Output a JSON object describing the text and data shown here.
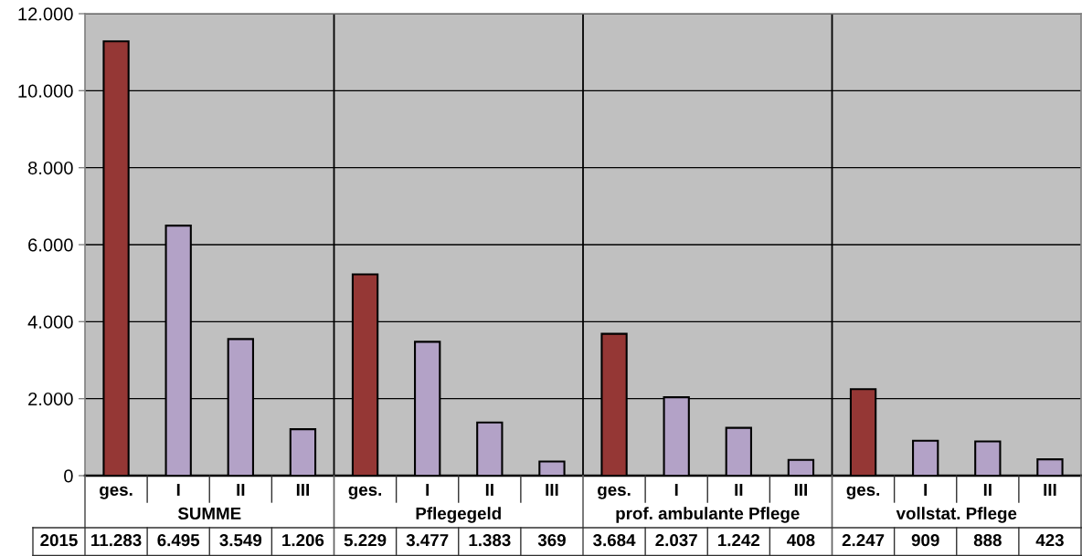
{
  "chart_data": {
    "type": "bar",
    "categories": [
      "ges.",
      "I",
      "II",
      "III",
      "ges.",
      "I",
      "II",
      "III",
      "ges.",
      "I",
      "II",
      "III",
      "ges.",
      "I",
      "II",
      "III"
    ],
    "series": [
      {
        "name": "2015",
        "values": [
          11283,
          6495,
          3549,
          1206,
          5229,
          3477,
          1383,
          369,
          3684,
          2037,
          1242,
          408,
          2247,
          909,
          888,
          423
        ],
        "colors": [
          "#953735",
          "#b3a2c7",
          "#b3a2c7",
          "#b3a2c7",
          "#953735",
          "#b3a2c7",
          "#b3a2c7",
          "#b3a2c7",
          "#953735",
          "#b3a2c7",
          "#b3a2c7",
          "#b3a2c7",
          "#953735",
          "#b3a2c7",
          "#b3a2c7",
          "#b3a2c7"
        ],
        "value_labels": [
          "11.283",
          "6.495",
          "3.549",
          "1.206",
          "5.229",
          "3.477",
          "1.383",
          "369",
          "3.684",
          "2.037",
          "1.242",
          "408",
          "2.247",
          "909",
          "888",
          "423"
        ]
      }
    ],
    "annotations": [
      "SUMME",
      "Pflegegeld",
      "prof. ambulante Pflege",
      "vollstat. Pflege"
    ],
    "ylim": [
      0,
      12000
    ],
    "yticks": [
      0,
      {
        "value": 2000,
        "label": "2.000"
      },
      {
        "value": 4000,
        "label": "4.000"
      },
      {
        "value": 6000,
        "label": "6.000"
      },
      {
        "value": 8000,
        "label": "8.000"
      },
      {
        "value": 10000,
        "label": "10.000"
      },
      {
        "value": 12000,
        "label": "12.000"
      }
    ],
    "grid": "y"
  }
}
